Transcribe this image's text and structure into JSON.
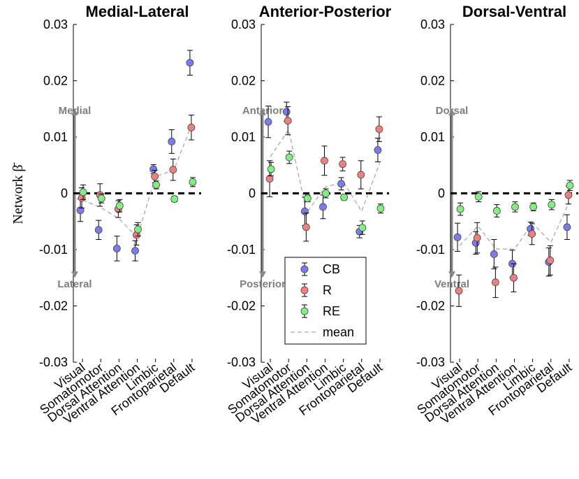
{
  "ylabel": "Network β̄",
  "yticks": [
    "0.03",
    "0.02",
    "0.01",
    "0",
    "-0.01",
    "-0.02",
    "-0.03"
  ],
  "colors": {
    "CB": "#7b7bf0",
    "R": "#f08080",
    "RE": "#80f080",
    "mean": "#aaaaaa",
    "arrow": "#888888"
  },
  "legend": [
    {
      "key": "CB",
      "label": "CB"
    },
    {
      "key": "R",
      "label": "R"
    },
    {
      "key": "RE",
      "label": "RE"
    },
    {
      "key": "mean",
      "label": "mean"
    }
  ],
  "chart_data": [
    {
      "type": "scatter",
      "title": "Medial-Lateral",
      "positive_label": "Medial",
      "negative_label": "Lateral",
      "ylim": [
        -0.03,
        0.03
      ],
      "categories": [
        "Visual",
        "Somatomotor",
        "Dorsal Attention",
        "Ventral Attention",
        "Limbic",
        "Frontoparietal",
        "Default"
      ],
      "series": [
        {
          "name": "CB",
          "values": [
            -0.003,
            -0.0065,
            -0.0098,
            -0.0102,
            0.0043,
            0.0092,
            0.0232
          ],
          "errors": [
            0.002,
            0.0017,
            0.0022,
            0.0018,
            0.0008,
            0.0021,
            0.0022
          ]
        },
        {
          "name": "R",
          "values": [
            -0.0008,
            -0.0003,
            -0.0028,
            -0.0074,
            0.003,
            0.0042,
            0.0117
          ],
          "errors": [
            0.0018,
            0.002,
            0.0015,
            0.0018,
            0.0011,
            0.0019,
            0.0022
          ]
        },
        {
          "name": "RE",
          "values": [
            0.0002,
            -0.0009,
            -0.0022,
            -0.0064,
            0.0015,
            -0.001,
            0.002
          ],
          "errors": [
            0.0013,
            0.0008,
            0.0011,
            0.0012,
            0.0007,
            0.0005,
            0.0008
          ]
        },
        {
          "name": "mean",
          "values": [
            -0.0012,
            -0.0025,
            -0.0045,
            -0.0078,
            0.003,
            0.0041,
            0.0123
          ]
        }
      ]
    },
    {
      "type": "scatter",
      "title": "Anterior-Posterior",
      "positive_label": "Anterior",
      "negative_label": "Posterior",
      "ylim": [
        -0.03,
        0.03
      ],
      "categories": [
        "Visual",
        "Somatomotor",
        "Dorsal Attention",
        "Ventral Attention",
        "Limbic",
        "Frontoparietal",
        "Default"
      ],
      "series": [
        {
          "name": "CB",
          "values": [
            0.0127,
            0.0145,
            -0.0032,
            -0.0024,
            0.0017,
            -0.0068,
            0.0077
          ],
          "errors": [
            0.0028,
            0.0017,
            0.0025,
            0.0021,
            0.0011,
            0.0011,
            0.0021
          ]
        },
        {
          "name": "R",
          "values": [
            0.0026,
            0.0129,
            -0.006,
            0.0058,
            0.0052,
            0.0033,
            0.0114
          ],
          "errors": [
            0.0032,
            0.0025,
            0.0025,
            0.0026,
            0.0012,
            0.0025,
            0.0022
          ]
        },
        {
          "name": "RE",
          "values": [
            0.0043,
            0.0064,
            -0.0009,
            0.0,
            -0.0007,
            -0.0061,
            -0.0027
          ],
          "errors": [
            0.0012,
            0.0011,
            0.0006,
            0.0008,
            0.0005,
            0.0012,
            0.0008
          ]
        },
        {
          "name": "mean",
          "values": [
            0.0065,
            0.0113,
            -0.0034,
            0.0011,
            0.002,
            -0.0032,
            0.0055
          ]
        }
      ]
    },
    {
      "type": "scatter",
      "title": "Dorsal-Ventral",
      "positive_label": "Dorsal",
      "negative_label": "Ventral",
      "ylim": [
        -0.03,
        0.03
      ],
      "categories": [
        "Visual",
        "Somatomotor",
        "Dorsal Attention",
        "Ventral Attention",
        "Limbic",
        "Frontoparietal",
        "Default"
      ],
      "series": [
        {
          "name": "CB",
          "values": [
            -0.0078,
            -0.0088,
            -0.0108,
            -0.0125,
            -0.0063,
            -0.0122,
            -0.006
          ],
          "errors": [
            0.0025,
            0.002,
            0.0026,
            0.0024,
            0.0012,
            0.0025,
            0.0022
          ]
        },
        {
          "name": "R",
          "values": [
            -0.0173,
            -0.0079,
            -0.0158,
            -0.015,
            -0.0072,
            -0.0119,
            -0.0003
          ],
          "errors": [
            0.0028,
            0.0027,
            0.0027,
            0.0025,
            0.0019,
            0.0026,
            0.0016
          ]
        },
        {
          "name": "RE",
          "values": [
            -0.0028,
            -0.0006,
            -0.0031,
            -0.0024,
            -0.0024,
            -0.002,
            0.0014
          ],
          "errors": [
            0.0011,
            0.0009,
            0.0011,
            0.0009,
            0.0007,
            0.0009,
            0.0009
          ]
        },
        {
          "name": "mean",
          "values": [
            -0.0093,
            -0.0058,
            -0.0099,
            -0.0099,
            -0.0053,
            -0.0087,
            -0.0016
          ]
        }
      ]
    }
  ]
}
